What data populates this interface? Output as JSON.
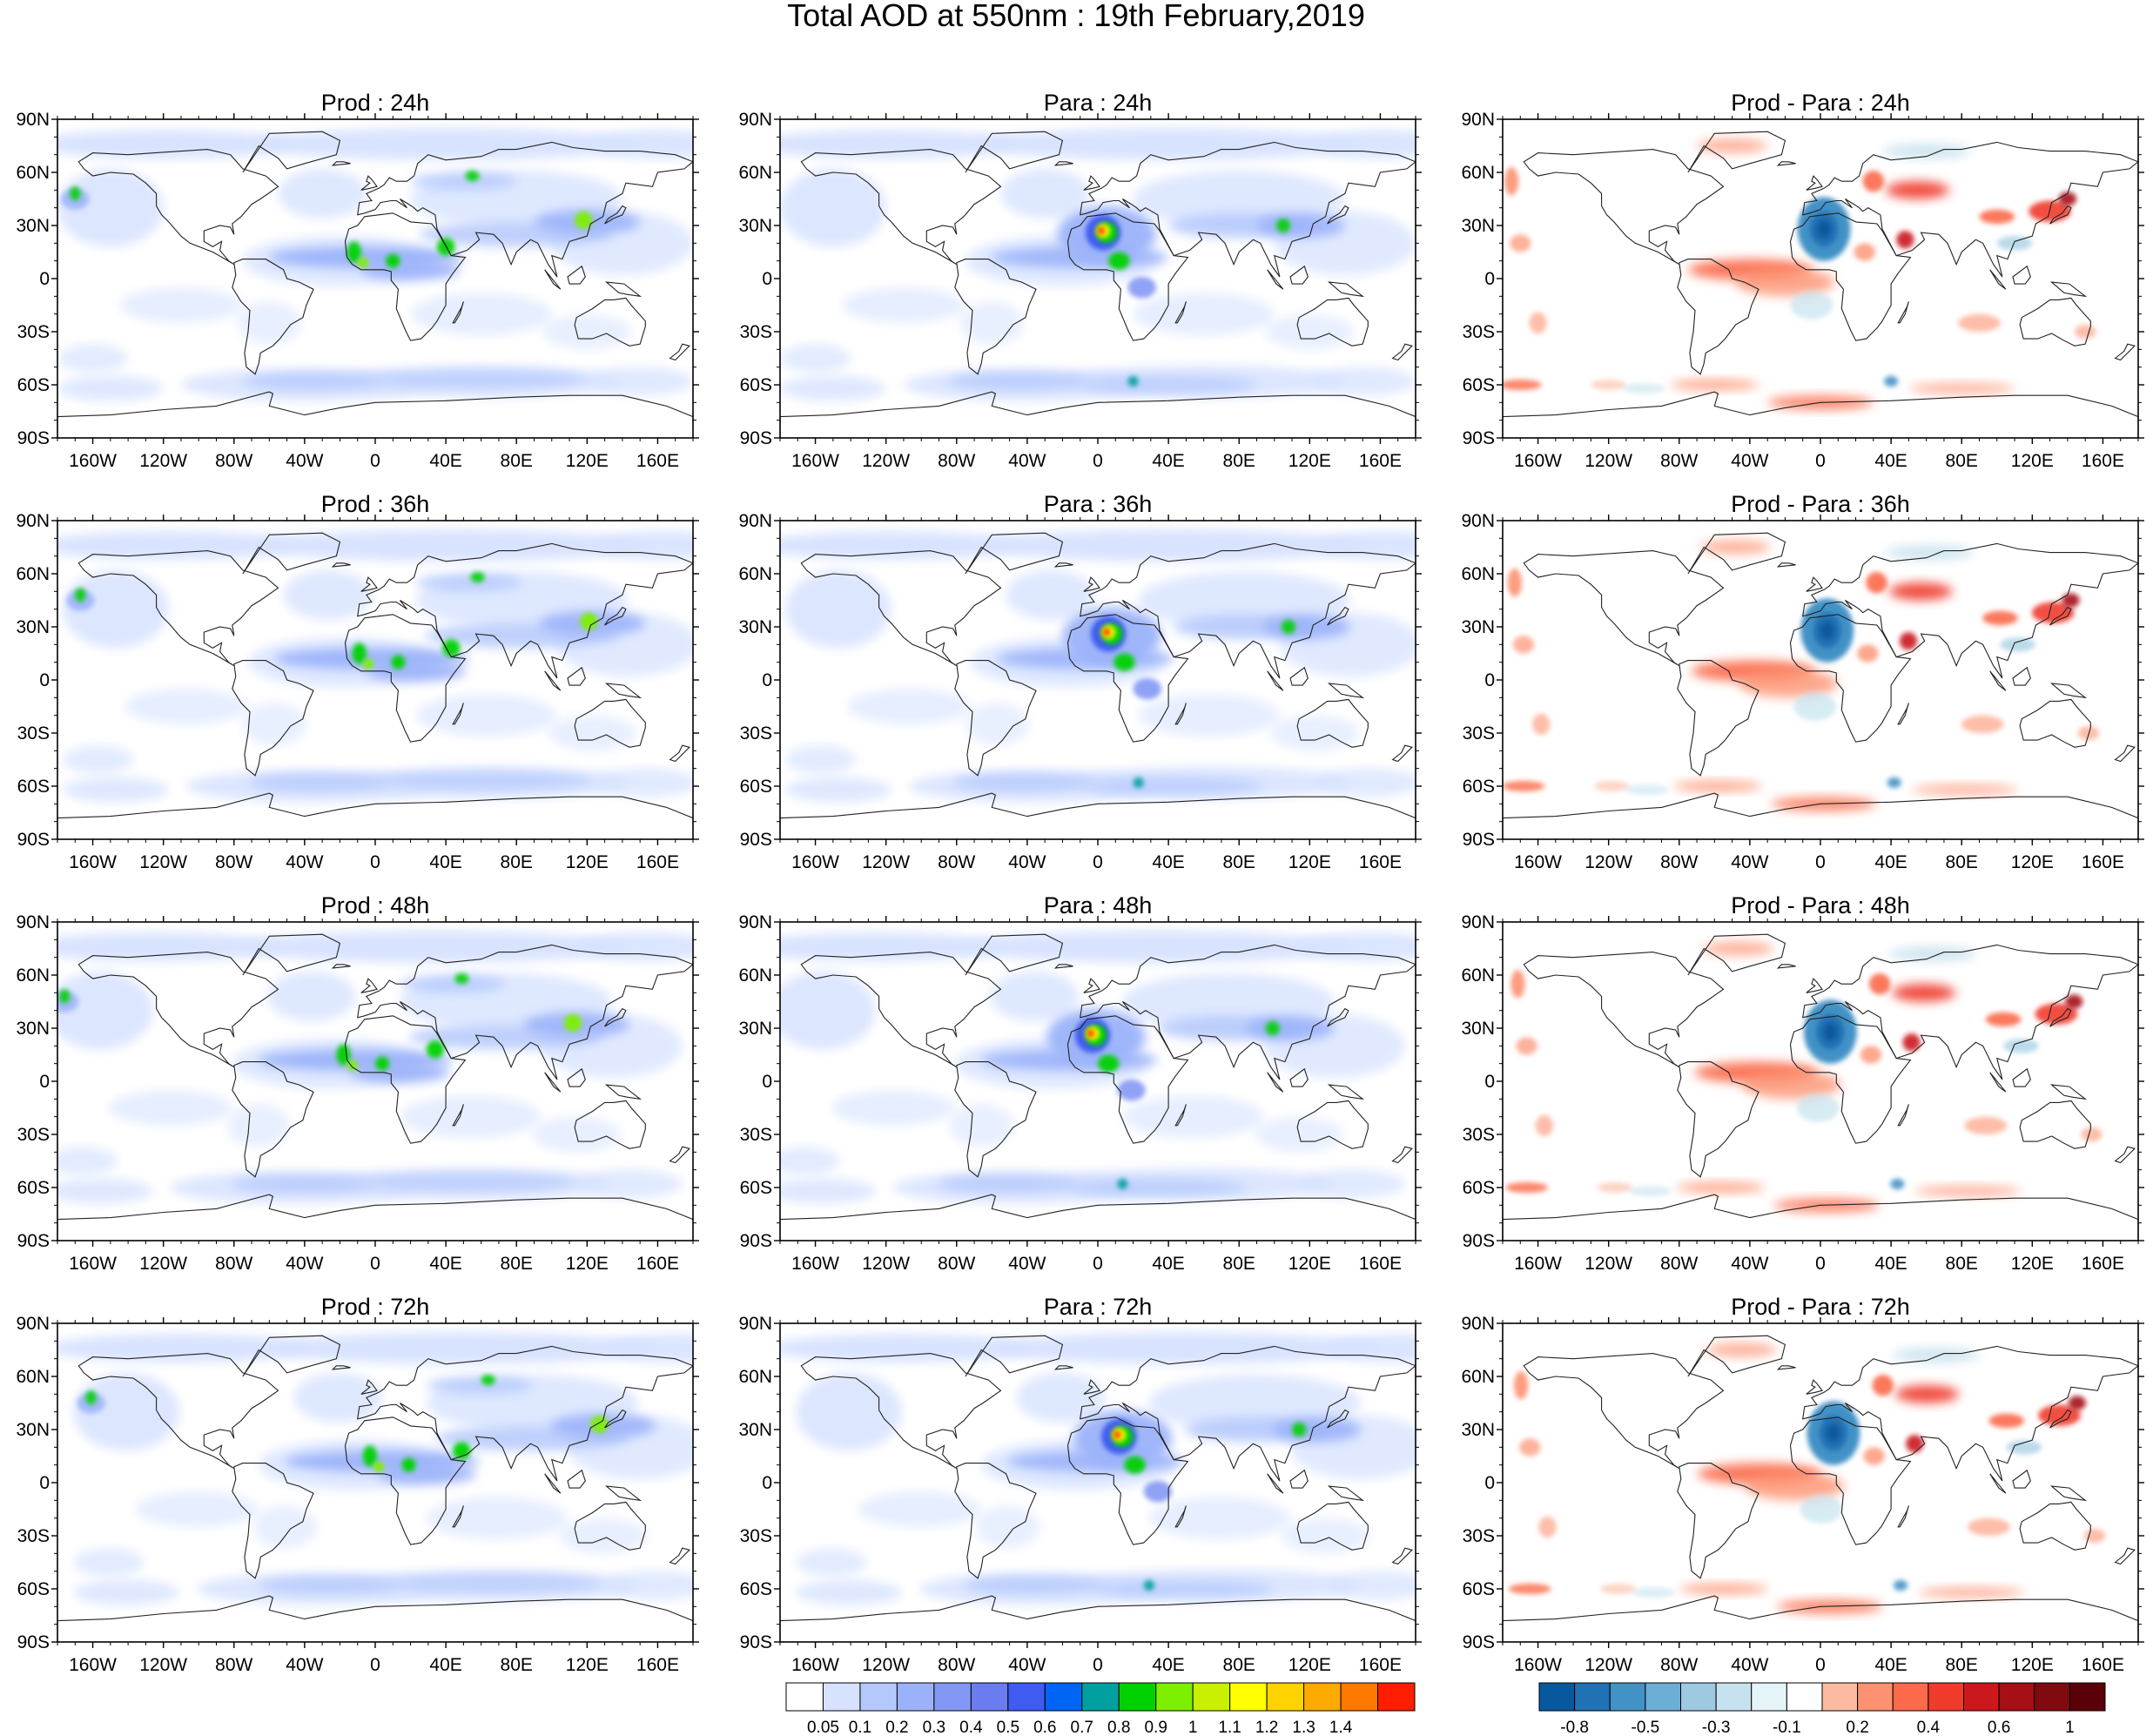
{
  "title": "Total AOD at 550nm : 19th February,2019",
  "columns": [
    "Prod",
    "Para",
    "Prod - Para"
  ],
  "forecast_hours": [
    "24h",
    "36h",
    "48h",
    "72h"
  ],
  "panel_titles": [
    [
      "Prod : 24h",
      "Para : 24h",
      "Prod - Para : 24h"
    ],
    [
      "Prod : 36h",
      "Para : 36h",
      "Prod - Para : 36h"
    ],
    [
      "Prod : 48h",
      "Para : 48h",
      "Prod - Para : 48h"
    ],
    [
      "Prod : 72h",
      "Para : 72h",
      "Prod - Para : 72h"
    ]
  ],
  "lat_ticks": [
    "90N",
    "60N",
    "30N",
    "0",
    "30S",
    "60S",
    "90S"
  ],
  "lon_ticks": [
    "160W",
    "120W",
    "80W",
    "40W",
    "0",
    "40E",
    "80E",
    "120E",
    "160E"
  ],
  "map_extent": {
    "lon": [
      -180,
      180
    ],
    "lat": [
      -90,
      90
    ]
  },
  "aod_colorbar": {
    "labels": [
      "0.05",
      "0.1",
      "0.2",
      "0.3",
      "0.4",
      "0.5",
      "0.6",
      "0.7",
      "0.8",
      "0.9",
      "1",
      "1.1",
      "1.2",
      "1.3",
      "1.4"
    ],
    "colors": [
      "#ffffff",
      "#d6e2ff",
      "#b4c8fc",
      "#9bb2fa",
      "#8398f4",
      "#6a7cf0",
      "#3f5bf0",
      "#0064f4",
      "#00a0a0",
      "#00d200",
      "#7cf000",
      "#c8f000",
      "#ffff00",
      "#ffd200",
      "#ffaa00",
      "#ff7800",
      "#ff1e00"
    ]
  },
  "diff_colorbar": {
    "labels": [
      "-0.8",
      "-0.5",
      "-0.3",
      "-0.1",
      "0.2",
      "0.4",
      "0.6",
      "1"
    ],
    "colors": [
      "#08589e",
      "#2171b5",
      "#4292c6",
      "#6baed6",
      "#9ecae1",
      "#c6e2ee",
      "#e5f4f8",
      "#ffffff",
      "#fcbba1",
      "#fc9272",
      "#fb6a4a",
      "#ef3b2c",
      "#cb181d",
      "#a50f15",
      "#800a0f",
      "#5a0008"
    ]
  },
  "colors": {
    "frame": "#000000",
    "land_outline": "#222222",
    "ocean": "#ffffff"
  }
}
